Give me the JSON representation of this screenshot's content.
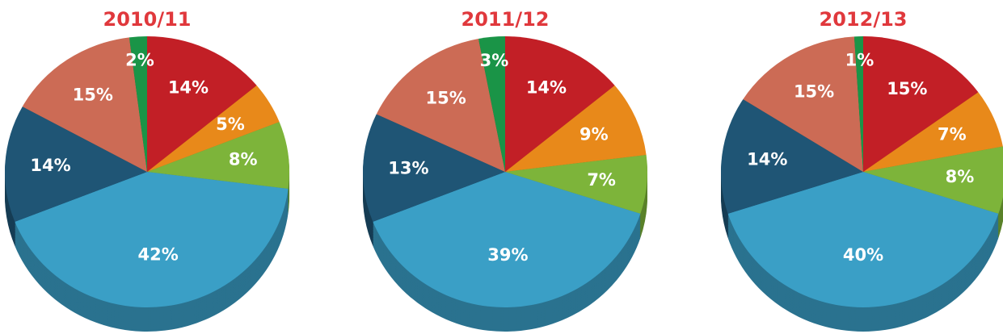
{
  "chart_data": [
    {
      "type": "pie",
      "title": "2010/11",
      "values": [
        14,
        5,
        8,
        42,
        14,
        15,
        2
      ],
      "value_labels": [
        "14%",
        "5%",
        "8%",
        "42%",
        "14%",
        "15%",
        "2%"
      ],
      "colors": [
        "#c21f26",
        "#e8891a",
        "#7db43a",
        "#3a9fc6",
        "#1f5575",
        "#cc6b55",
        "#1a9447"
      ]
    },
    {
      "type": "pie",
      "title": "2011/12",
      "values": [
        14,
        9,
        7,
        39,
        13,
        15,
        3
      ],
      "value_labels": [
        "14%",
        "9%",
        "7%",
        "39%",
        "13%",
        "15%",
        "3%"
      ],
      "colors": [
        "#c21f26",
        "#e8891a",
        "#7db43a",
        "#3a9fc6",
        "#1f5575",
        "#cc6b55",
        "#1a9447"
      ]
    },
    {
      "type": "pie",
      "title": "2012/13",
      "values": [
        15,
        7,
        8,
        40,
        14,
        15,
        1
      ],
      "value_labels": [
        "15%",
        "7%",
        "8%",
        "40%",
        "14%",
        "15%",
        "1%"
      ],
      "colors": [
        "#c21f26",
        "#e8891a",
        "#7db43a",
        "#3a9fc6",
        "#1f5575",
        "#cc6b55",
        "#1a9447"
      ]
    }
  ]
}
